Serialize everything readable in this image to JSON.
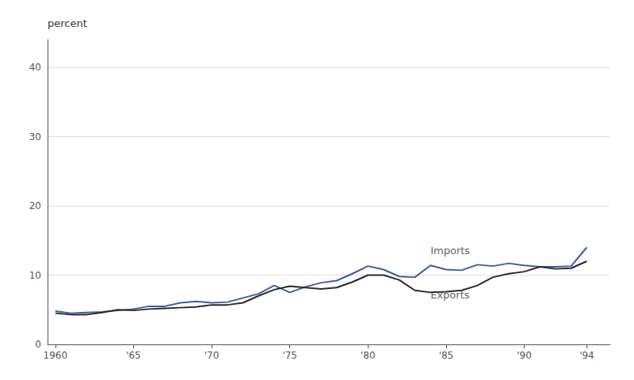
{
  "chart_data": {
    "type": "line",
    "ylabel": "percent",
    "x": [
      1960,
      1961,
      1962,
      1963,
      1964,
      1965,
      1966,
      1967,
      1968,
      1969,
      1970,
      1971,
      1972,
      1973,
      1974,
      1975,
      1976,
      1977,
      1978,
      1979,
      1980,
      1981,
      1982,
      1983,
      1984,
      1985,
      1986,
      1987,
      1988,
      1989,
      1990,
      1991,
      1992,
      1993,
      1994
    ],
    "series": [
      {
        "color": "#3a5daa",
        "values": [
          4.8,
          4.5,
          4.6,
          4.7,
          4.9,
          5.1,
          5.5,
          5.5,
          6.0,
          6.2,
          6.0,
          6.1,
          6.7,
          7.3,
          8.5,
          7.5,
          8.3,
          8.9,
          9.2,
          10.2,
          11.3,
          10.8,
          9.8,
          9.7,
          11.4,
          10.8,
          10.7,
          11.5,
          11.3,
          11.7,
          11.4,
          11.2,
          11.2,
          11.3,
          14.0
        ]
      },
      {
        "color": "#2a2a2a",
        "values": [
          4.5,
          4.3,
          4.3,
          4.6,
          5.0,
          4.9,
          5.1,
          5.2,
          5.3,
          5.4,
          5.7,
          5.7,
          6.0,
          7.0,
          7.9,
          8.4,
          8.2,
          8.0,
          8.2,
          9.0,
          10.0,
          10.0,
          9.3,
          7.8,
          7.5,
          7.6,
          7.8,
          8.5,
          9.7,
          10.2,
          10.5,
          11.2,
          10.9,
          11.0,
          12.0
        ]
      }
    ],
    "annotations": [
      {
        "text": "Imports",
        "x": 1984.0,
        "y": 13.5
      },
      {
        "text": "Exports",
        "x": 1984.0,
        "y": 7.2
      }
    ],
    "xlim": [
      1959.5,
      1995.5
    ],
    "xticks": [
      1960,
      {
        "value": 1965,
        "label": "'65"
      },
      {
        "value": 1970,
        "label": "'70"
      },
      {
        "value": 1975,
        "label": "'75"
      },
      {
        "value": 1980,
        "label": "'80"
      },
      {
        "value": 1985,
        "label": "'85"
      },
      {
        "value": 1990,
        "label": "'90"
      },
      {
        "value": 1994,
        "label": "'94"
      }
    ],
    "ylim": [
      0,
      44
    ],
    "yticks": [
      0,
      10,
      20,
      30,
      40
    ],
    "grid": true
  }
}
